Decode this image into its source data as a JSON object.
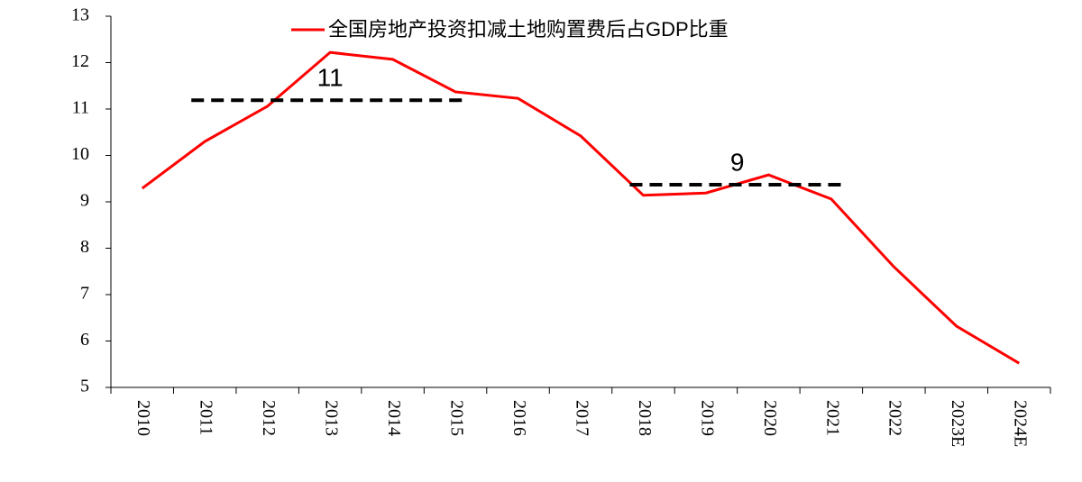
{
  "chart_data": {
    "type": "line",
    "categories": [
      "2010",
      "2011",
      "2012",
      "2013",
      "2014",
      "2015",
      "2016",
      "2017",
      "2018",
      "2019",
      "2020",
      "2021",
      "2022",
      "2023E",
      "2024E"
    ],
    "series": [
      {
        "name": "全国房地产投资扣减土地购置费后占GDP比重",
        "color": "#ff0000",
        "values": [
          9.29,
          10.3,
          11.06,
          12.22,
          12.07,
          11.37,
          11.23,
          10.42,
          9.14,
          9.19,
          9.58,
          9.06,
          7.6,
          6.32,
          5.52
        ]
      }
    ],
    "reference_lines": [
      {
        "label": "11",
        "value": 11.19,
        "from": "2011",
        "to": "2015",
        "color": "#000000"
      },
      {
        "label": "9",
        "value": 9.37,
        "from": "2018",
        "to": "2021",
        "color": "#000000"
      }
    ],
    "ylim": [
      5,
      13
    ],
    "yticks": [
      5,
      6,
      7,
      8,
      9,
      10,
      11,
      12,
      13
    ],
    "grid": false
  }
}
